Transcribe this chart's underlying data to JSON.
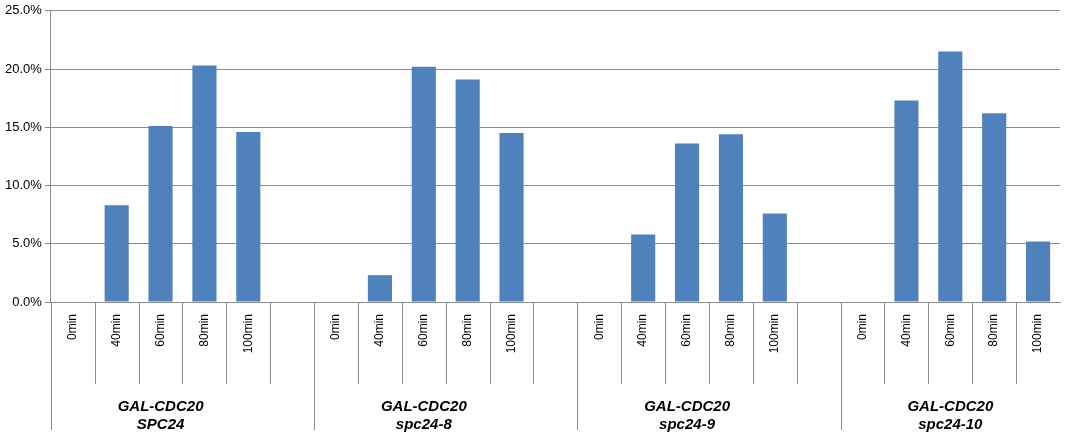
{
  "chart_data": {
    "type": "bar",
    "categories": [
      "0min",
      "40min",
      "60min",
      "80min",
      "100min",
      null,
      "0min",
      "40min",
      "60min",
      "80min",
      "100min",
      null,
      "0min",
      "40min",
      "60min",
      "80min",
      "100min",
      null,
      "0min",
      "40min",
      "60min",
      "80min",
      "100min"
    ],
    "values": [
      0,
      8.3,
      15.1,
      20.3,
      14.6,
      null,
      0,
      2.3,
      20.2,
      19.1,
      14.5,
      null,
      0,
      5.8,
      13.6,
      14.4,
      7.6,
      null,
      0,
      17.3,
      21.5,
      16.2,
      5.2
    ],
    "color": "#4f81bd",
    "ylim": [
      0,
      25
    ],
    "yticks": [
      {
        "value": 0,
        "label": "0.0%"
      },
      {
        "value": 5,
        "label": "5.0%"
      },
      {
        "value": 10,
        "label": "10.0%"
      },
      {
        "value": 15,
        "label": "15.0%"
      },
      {
        "value": 20,
        "label": "20.0%"
      },
      {
        "value": 25,
        "label": "25.0%"
      }
    ],
    "grid": "y",
    "annotations": [
      "GAL-CDC20\nSPC24",
      "GAL-CDC20\nspc24-8",
      "GAL-CDC20\nspc24-9",
      "GAL-CDC20\nspc24-10"
    ]
  }
}
